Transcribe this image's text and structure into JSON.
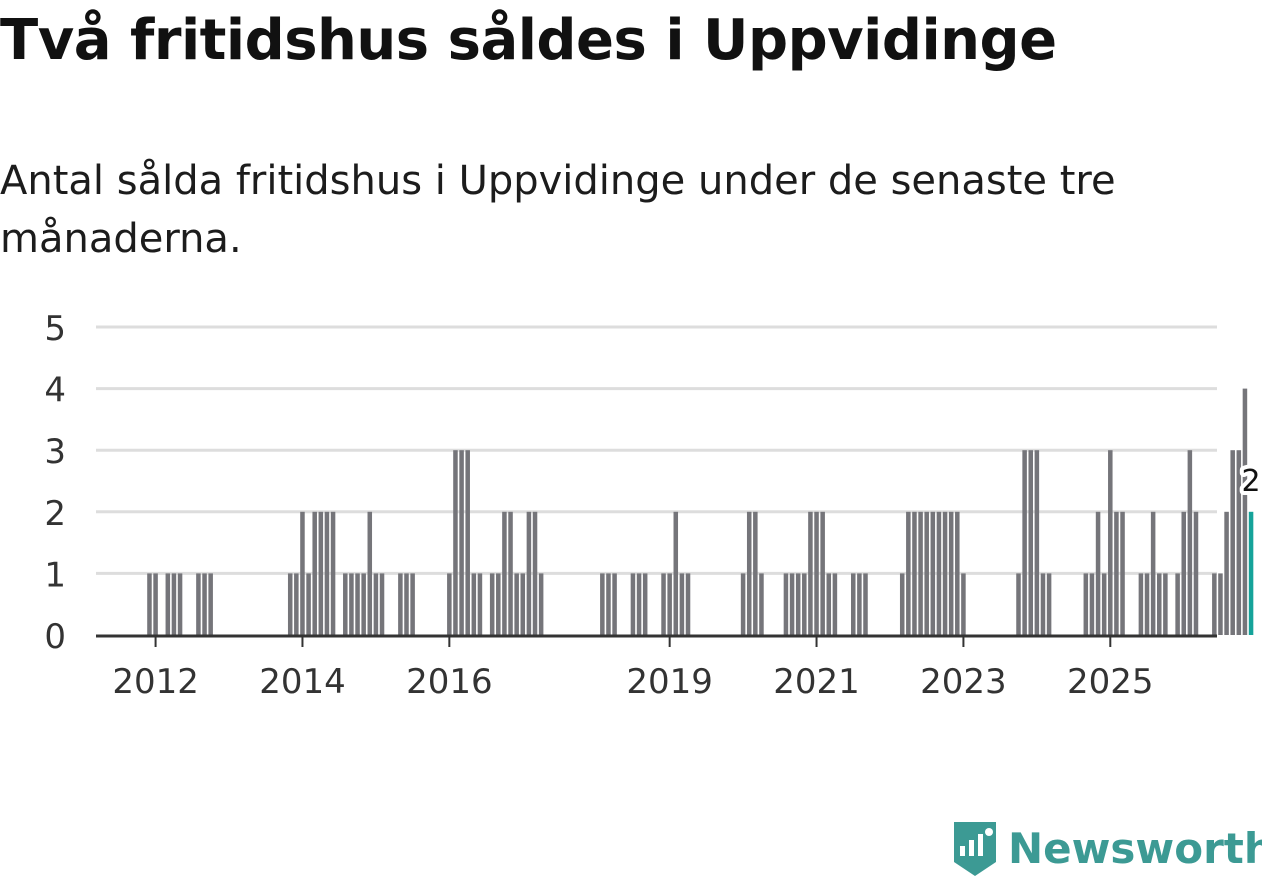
{
  "title": "Två fritidshus såldes i Uppvidinge",
  "subtitle": "Antal sålda fritidshus i Uppvidinge under de senaste tre månaderna.",
  "brand": {
    "name": "Newsworthy",
    "color": "#3c9a94",
    "icon": "newsworthy-logo-icon"
  },
  "colors": {
    "bar": "#75757a",
    "highlight": "#15a39a",
    "grid": "#dddddd",
    "axis": "#333333"
  },
  "chart_data": {
    "type": "bar",
    "x_start": "2011-12",
    "ylim": [
      0,
      5
    ],
    "yticks": [
      0,
      1,
      2,
      3,
      4,
      5
    ],
    "xticks": [
      {
        "label": "2012",
        "at": "2012-01"
      },
      {
        "label": "2014",
        "at": "2014-01"
      },
      {
        "label": "2016",
        "at": "2016-01"
      },
      {
        "label": "2019",
        "at": "2019-01"
      },
      {
        "label": "2021",
        "at": "2021-01"
      },
      {
        "label": "2023",
        "at": "2023-01"
      },
      {
        "label": "2025",
        "at": "2025-01"
      }
    ],
    "grid": true,
    "highlight_last": true,
    "last_value_label": "2",
    "values": [
      1,
      1,
      0,
      1,
      1,
      1,
      0,
      0,
      1,
      1,
      1,
      0,
      0,
      0,
      0,
      0,
      0,
      0,
      0,
      0,
      0,
      0,
      0,
      1,
      1,
      2,
      1,
      2,
      2,
      2,
      2,
      0,
      1,
      1,
      1,
      1,
      2,
      1,
      1,
      0,
      0,
      1,
      1,
      1,
      0,
      0,
      0,
      0,
      0,
      1,
      3,
      3,
      3,
      1,
      1,
      0,
      1,
      1,
      2,
      2,
      1,
      1,
      2,
      2,
      1,
      0,
      0,
      0,
      0,
      0,
      0,
      0,
      0,
      0,
      1,
      1,
      1,
      0,
      0,
      1,
      1,
      1,
      0,
      0,
      1,
      1,
      2,
      1,
      1,
      0,
      0,
      0,
      0,
      0,
      0,
      0,
      0,
      1,
      2,
      2,
      1,
      0,
      0,
      0,
      1,
      1,
      1,
      1,
      2,
      2,
      2,
      1,
      1,
      0,
      0,
      1,
      1,
      1,
      0,
      0,
      0,
      0,
      0,
      1,
      2,
      2,
      2,
      2,
      2,
      2,
      2,
      2,
      2,
      1,
      0,
      0,
      0,
      0,
      0,
      0,
      0,
      0,
      1,
      3,
      3,
      3,
      1,
      1,
      0,
      0,
      0,
      0,
      0,
      1,
      1,
      2,
      1,
      3,
      2,
      2,
      0,
      0,
      1,
      1,
      2,
      1,
      1,
      0,
      1,
      2,
      3,
      2,
      0,
      0,
      1,
      1,
      2,
      3,
      3,
      4,
      2
    ]
  }
}
